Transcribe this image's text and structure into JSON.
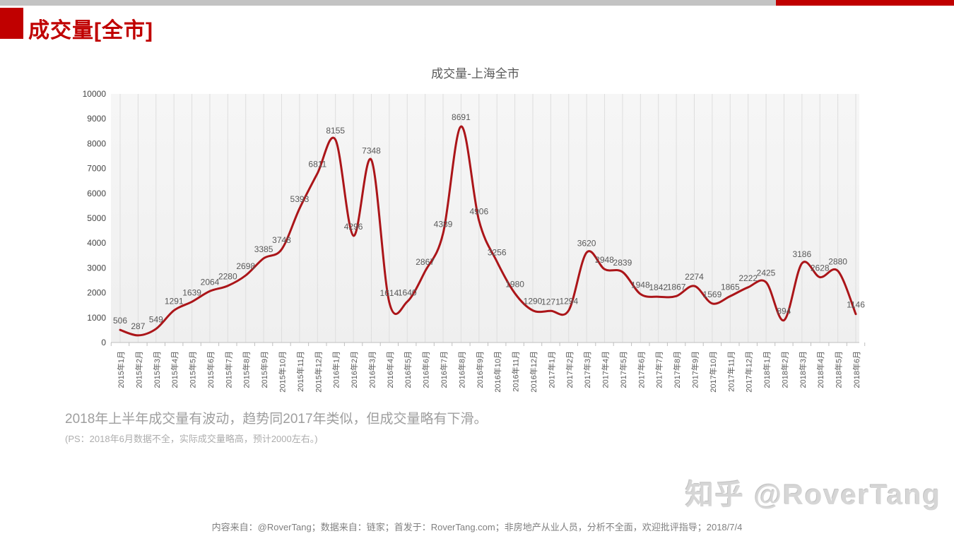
{
  "slide": {
    "title": "成交量[全市]",
    "caption_line1": "2018年上半年成交量有波动，趋势同2017年类似，但成交量略有下滑。",
    "caption_line2": "(PS：2018年6月数据不全，实际成交量略高，预计2000左右。)",
    "watermark": "知乎 @RoverTang",
    "footer": "内容来自：@RoverTang；数据来自：链家；首发于：RoverTang.com；非房地产从业人员，分析不全面，欢迎批评指导；2018/7/4"
  },
  "colors": {
    "accent_red": "#c00000",
    "topbar_gray": "#c3c3c3",
    "line_red": "#ab1519",
    "plot_bg_top": "#f6f6f6",
    "plot_bg_bottom": "#efefef",
    "gridline": "#dedede",
    "axis_line": "#bfbfbf",
    "chart_text": "#595959"
  },
  "chart_data": {
    "type": "line",
    "title": "成交量-上海全市",
    "xlabel": "",
    "ylabel": "",
    "ylim": [
      0,
      10000
    ],
    "ytick_step": 1000,
    "grid": "vertical",
    "legend": "none",
    "data_labels": true,
    "categories": [
      "2015年1月",
      "2015年2月",
      "2015年3月",
      "2015年4月",
      "2015年5月",
      "2015年6月",
      "2015年7月",
      "2015年8月",
      "2015年9月",
      "2015年10月",
      "2015年11月",
      "2015年12月",
      "2016年1月",
      "2016年2月",
      "2016年3月",
      "2016年4月",
      "2016年5月",
      "2016年6月",
      "2016年7月",
      "2016年8月",
      "2016年9月",
      "2016年10月",
      "2016年11月",
      "2016年12月",
      "2017年1月",
      "2017年2月",
      "2017年3月",
      "2017年4月",
      "2017年5月",
      "2017年6月",
      "2017年7月",
      "2017年8月",
      "2017年9月",
      "2017年10月",
      "2017年11月",
      "2017年12月",
      "2018年1月",
      "2018年2月",
      "2018年3月",
      "2018年4月",
      "2018年5月",
      "2018年6月"
    ],
    "series": [
      {
        "name": "成交量",
        "values": [
          506,
          287,
          549,
          1291,
          1639,
          2064,
          2280,
          2698,
          3385,
          3748,
          5393,
          6811,
          8155,
          4296,
          7348,
          1614,
          1640,
          2867,
          4389,
          8691,
          4906,
          3256,
          1980,
          1290,
          1271,
          1294,
          3620,
          2948,
          2839,
          1948,
          1842,
          1867,
          2274,
          1569,
          1865,
          2222,
          2425,
          894,
          3186,
          2628,
          2880,
          1146
        ]
      }
    ]
  }
}
